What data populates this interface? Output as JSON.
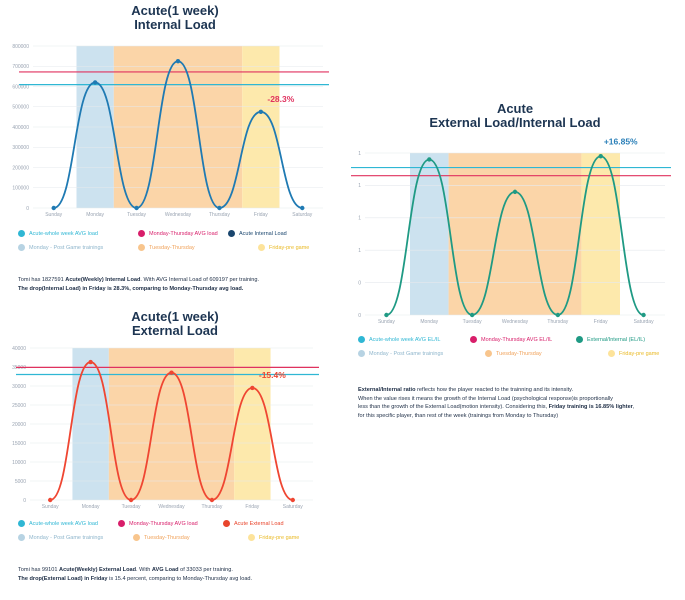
{
  "colors": {
    "monday_bg": "#c9e0ee",
    "tue_thu_bg": "#fbd3a3",
    "friday_bg": "#fde8a8",
    "week_avg_line": "#2fb7d4",
    "mon_thu_line": "#e0325f",
    "internal_line": "#1f7ab3",
    "external_line": "#ef4632",
    "ratio_line": "#1f9a84",
    "grid": "#e6e9ee"
  },
  "legend_colors": {
    "week_avg": "#2fb7d4",
    "mon_thu": "#d81e6a",
    "internal": "#1a466e",
    "external": "#e8452c",
    "ratio": "#1f9a84",
    "monday": "#b7d3e3",
    "tue_thu": "#f8c58d",
    "friday": "#fde39a"
  },
  "chart1": {
    "title_line1": "Acute(1 week)",
    "title_line2": "Internal Load",
    "annotation": "-28.3%",
    "legend": {
      "week_avg": "Acute-whole week AVG load",
      "mon_thu": "Monday-Thursday AVG load",
      "series": "Acute Internal Load",
      "monday": "Monday - Post Game trainings",
      "tue_thu": "Tuesday-Thursday",
      "friday": "Friday-pre game"
    },
    "note_line1_pre": "Tomi has 1827591 ",
    "note_line1_bold": "Acute(Weekly) Internal Load",
    "note_line1_post": ". With AVG Internal Load of 609197 per training.",
    "note_line2_bold": "The drop(Internal Load) in Friday is 28.3%, comparing to Monday-Thursday avg load."
  },
  "chart2": {
    "title_line1": "Acute(1 week)",
    "title_line2": "External Load",
    "annotation": "-15.4%",
    "legend": {
      "week_avg": "Acute-whole week AVG load",
      "mon_thu": "Monday-Thursday AVG load",
      "series": "Acute External Load",
      "monday": "Monday - Post Game trainings",
      "tue_thu": "Tuesday-Thursday",
      "friday": "Friday-pre game"
    },
    "note_line1_pre": "Tomi has 99101 ",
    "note_line1_bold": "Acute(Weekly) External Load",
    "note_line1_mid": ". With ",
    "note_line1_bold2": "AVG Load",
    "note_line1_post": " of 33033 per training.",
    "note_line2_bold": "The drop(External Load) in Friday",
    "note_line2_post": " is 15.4 percent, comparing to Monday-Thursday avg load."
  },
  "chart3": {
    "title_line1": "Acute",
    "title_line2": "External Load/Internal Load",
    "annotation": "+16.85%",
    "legend": {
      "week_avg": "Acute-whole week AVG EL/IL",
      "mon_thu": "Monday-Thursday AVG EL/IL",
      "series": "External/Internal (EL/IL)",
      "monday": "Monday - Post Game trainings",
      "tue_thu": "Tuesday-Thursday",
      "friday": "Friday-pre game"
    },
    "note_line1_bold": "External/Internal ratio",
    "note_line1_post": " reflects how the player reacted to the trainning and its intensity.",
    "note_line2": "When the value rises it means  the growth of the Internal Load (psychological response)is proportionally",
    "note_line3_pre": "less than the growth of the External Load(motion intensity). Considering this, ",
    "note_line3_bold": "Friday training is 16.85% lighter",
    "note_line3_post": ",",
    "note_line4": "for this specific player, than rest of the week (trainings from Monday to Thursday)"
  },
  "chart_data": [
    {
      "type": "line",
      "title": "Acute(1 week) Internal Load",
      "categories": [
        "Sunday",
        "Monday",
        "Tuesday",
        "Wednesday",
        "Thursday",
        "Friday",
        "Saturday"
      ],
      "y_ticks": [
        "0",
        "100000",
        "200000",
        "300000",
        "400000",
        "500000",
        "600000",
        "700000",
        "800000"
      ],
      "ylim": [
        0,
        800000
      ],
      "series": [
        {
          "name": "Acute Internal Load",
          "values": [
            0,
            620000,
            0,
            725000,
            0,
            475000,
            0
          ]
        },
        {
          "name": "Acute-whole week AVG load",
          "values": [
            609197,
            609197,
            609197,
            609197,
            609197,
            609197,
            609197
          ]
        },
        {
          "name": "Monday-Thursday AVG load",
          "values": [
            672000,
            672000,
            672000,
            672000,
            672000,
            672000,
            672000
          ]
        }
      ],
      "highlight_bands": [
        {
          "name": "Monday - Post Game trainings",
          "from": 0.55,
          "to": 1.45
        },
        {
          "name": "Tuesday-Thursday",
          "from": 1.45,
          "to": 4.55
        },
        {
          "name": "Friday-pre game",
          "from": 4.55,
          "to": 5.45
        }
      ],
      "annotation": {
        "text": "-28.3%",
        "x": "Friday"
      },
      "grid": true
    },
    {
      "type": "line",
      "title": "Acute(1 week) External Load",
      "categories": [
        "Sunday",
        "Monday",
        "Tuesday",
        "Wednesday",
        "Thursday",
        "Friday",
        "Saturday"
      ],
      "y_ticks": [
        "0",
        "5000",
        "10000",
        "15000",
        "20000",
        "25000",
        "30000",
        "35000",
        "40000"
      ],
      "ylim": [
        0,
        40000
      ],
      "series": [
        {
          "name": "Acute External Load",
          "values": [
            0,
            36300,
            0,
            33500,
            0,
            29500,
            0
          ]
        },
        {
          "name": "Acute-whole week AVG load",
          "values": [
            33033,
            33033,
            33033,
            33033,
            33033,
            33033,
            33033
          ]
        },
        {
          "name": "Monday-Thursday AVG load",
          "values": [
            34900,
            34900,
            34900,
            34900,
            34900,
            34900,
            34900
          ]
        }
      ],
      "highlight_bands": [
        {
          "name": "Monday - Post Game trainings",
          "from": 0.55,
          "to": 1.45
        },
        {
          "name": "Tuesday-Thursday",
          "from": 1.45,
          "to": 4.55
        },
        {
          "name": "Friday-pre game",
          "from": 4.55,
          "to": 5.45
        }
      ],
      "annotation": {
        "text": "-15.4%",
        "x": "Friday"
      },
      "grid": true
    },
    {
      "type": "line",
      "title": "Acute External Load/Internal Load",
      "categories": [
        "Sunday",
        "Monday",
        "Tuesday",
        "Wednesday",
        "Thursday",
        "Friday",
        "Saturday"
      ],
      "y_ticks": [
        "0",
        "0",
        "1",
        "1",
        "1",
        "1"
      ],
      "ylim": [
        0,
        1
      ],
      "series": [
        {
          "name": "External/Internal (EL/IL)",
          "values": [
            0,
            0.96,
            0,
            0.76,
            0,
            0.98,
            0
          ]
        },
        {
          "name": "Acute-whole week AVG EL/IL",
          "values": [
            0.91,
            0.91,
            0.91,
            0.91,
            0.91,
            0.91,
            0.91
          ]
        },
        {
          "name": "Monday-Thursday AVG EL/IL",
          "values": [
            0.86,
            0.86,
            0.86,
            0.86,
            0.86,
            0.86,
            0.86
          ]
        }
      ],
      "highlight_bands": [
        {
          "name": "Monday - Post Game trainings",
          "from": 0.55,
          "to": 1.45
        },
        {
          "name": "Tuesday-Thursday",
          "from": 1.45,
          "to": 4.55
        },
        {
          "name": "Friday-pre game",
          "from": 4.55,
          "to": 5.45
        }
      ],
      "annotation": {
        "text": "+16.85%",
        "x": "Friday"
      },
      "grid": true
    }
  ]
}
